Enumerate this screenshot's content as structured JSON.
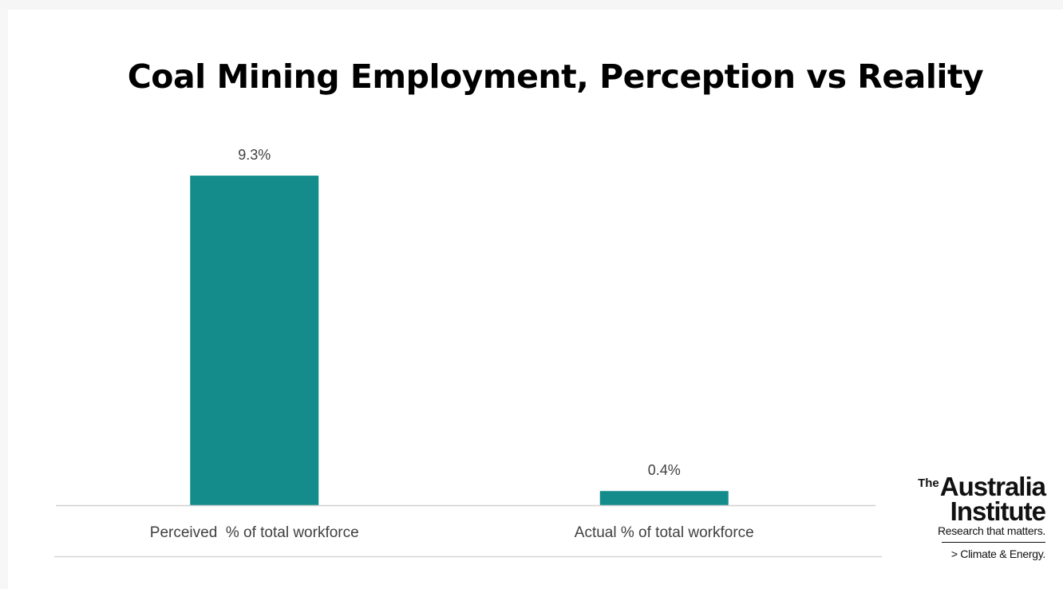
{
  "chart_data": {
    "type": "bar",
    "title": "Coal Mining Employment, Perception vs Reality",
    "categories": [
      "Perceived  % of total workforce",
      "Actual % of total workforce"
    ],
    "values": [
      9.3,
      0.4
    ],
    "data_labels": [
      "9.3%",
      "0.4%"
    ],
    "ylim": [
      0,
      10
    ],
    "grid": false,
    "legend": "none",
    "bar_color": "#148c8c"
  },
  "logo": {
    "the": "The",
    "name_line1": "Australia",
    "name_line2": "Institute",
    "tagline": "Research that matters.",
    "program": "> Climate & Energy."
  }
}
